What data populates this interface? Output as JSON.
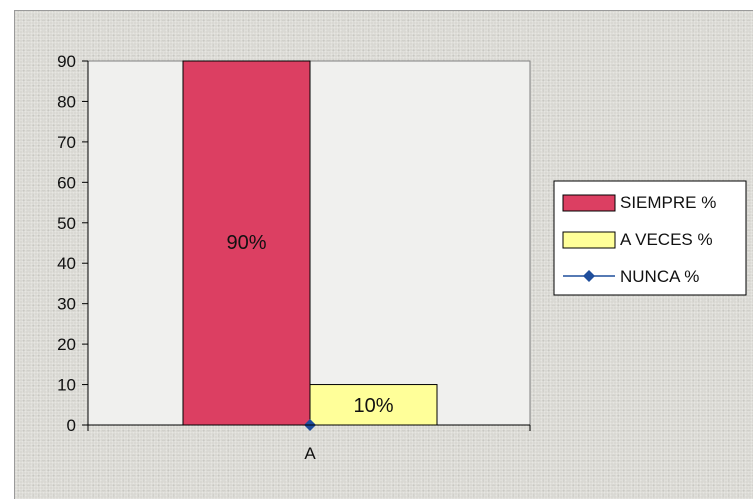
{
  "chart_data": {
    "type": "bar",
    "categories": [
      "A"
    ],
    "series": [
      {
        "name": "SIEMPRE %",
        "values": [
          90
        ],
        "color": "#dc3f62",
        "label": "90%",
        "kind": "bar"
      },
      {
        "name": "A VECES %",
        "values": [
          10
        ],
        "color": "#ffff99",
        "label": "10%",
        "kind": "bar"
      },
      {
        "name": "NUNCA %",
        "values": [
          0
        ],
        "color": "#1f4e9c",
        "kind": "line-marker"
      }
    ],
    "yticks": [
      "0",
      "10",
      "20",
      "30",
      "40",
      "50",
      "60",
      "70",
      "80",
      "90"
    ],
    "ylim": [
      0,
      90
    ],
    "grid": false,
    "legend": "right"
  }
}
